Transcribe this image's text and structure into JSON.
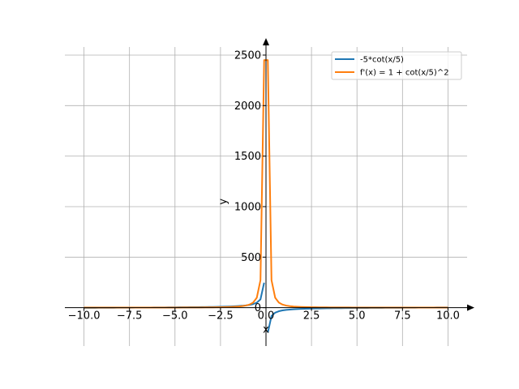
{
  "chart_data": {
    "type": "line",
    "xlabel": "x",
    "ylabel": "y",
    "xlim": [
      -11.05,
      11.05
    ],
    "ylim": [
      -380,
      2580
    ],
    "x_ticks": [
      -10.0,
      -7.5,
      -5.0,
      -2.5,
      0.0,
      2.5,
      5.0,
      7.5,
      10.0
    ],
    "x_tick_labels": [
      "−10.0",
      "−7.5",
      "−5.0",
      "−2.5",
      "0.0",
      "2.5",
      "5.0",
      "7.5",
      "10.0"
    ],
    "y_ticks": [
      0,
      500,
      1000,
      1500,
      2000,
      2500
    ],
    "y_tick_labels": [
      "0",
      "500",
      "1000",
      "1500",
      "2000",
      "2500"
    ],
    "grid": true,
    "legend_position": "top-right",
    "series": [
      {
        "name": "-5*cot(x/5)",
        "color": "#1f77b4",
        "expression": "-5*cot(x/5)",
        "x_range": [
          -10,
          10
        ],
        "excluded_interval": [
          -0.1,
          0.1
        ],
        "samples": 100
      },
      {
        "name": "f'(x) = 1 + cot(x/5)^2",
        "color": "#ff7f0e",
        "expression": "1 + cot(x/5)^2",
        "x_range": [
          -10,
          10
        ],
        "excluded_interval": [
          -0.1,
          0.1
        ],
        "samples": 100,
        "isolated_points": [
          {
            "x": 0.0,
            "y": 2450
          }
        ]
      }
    ]
  }
}
